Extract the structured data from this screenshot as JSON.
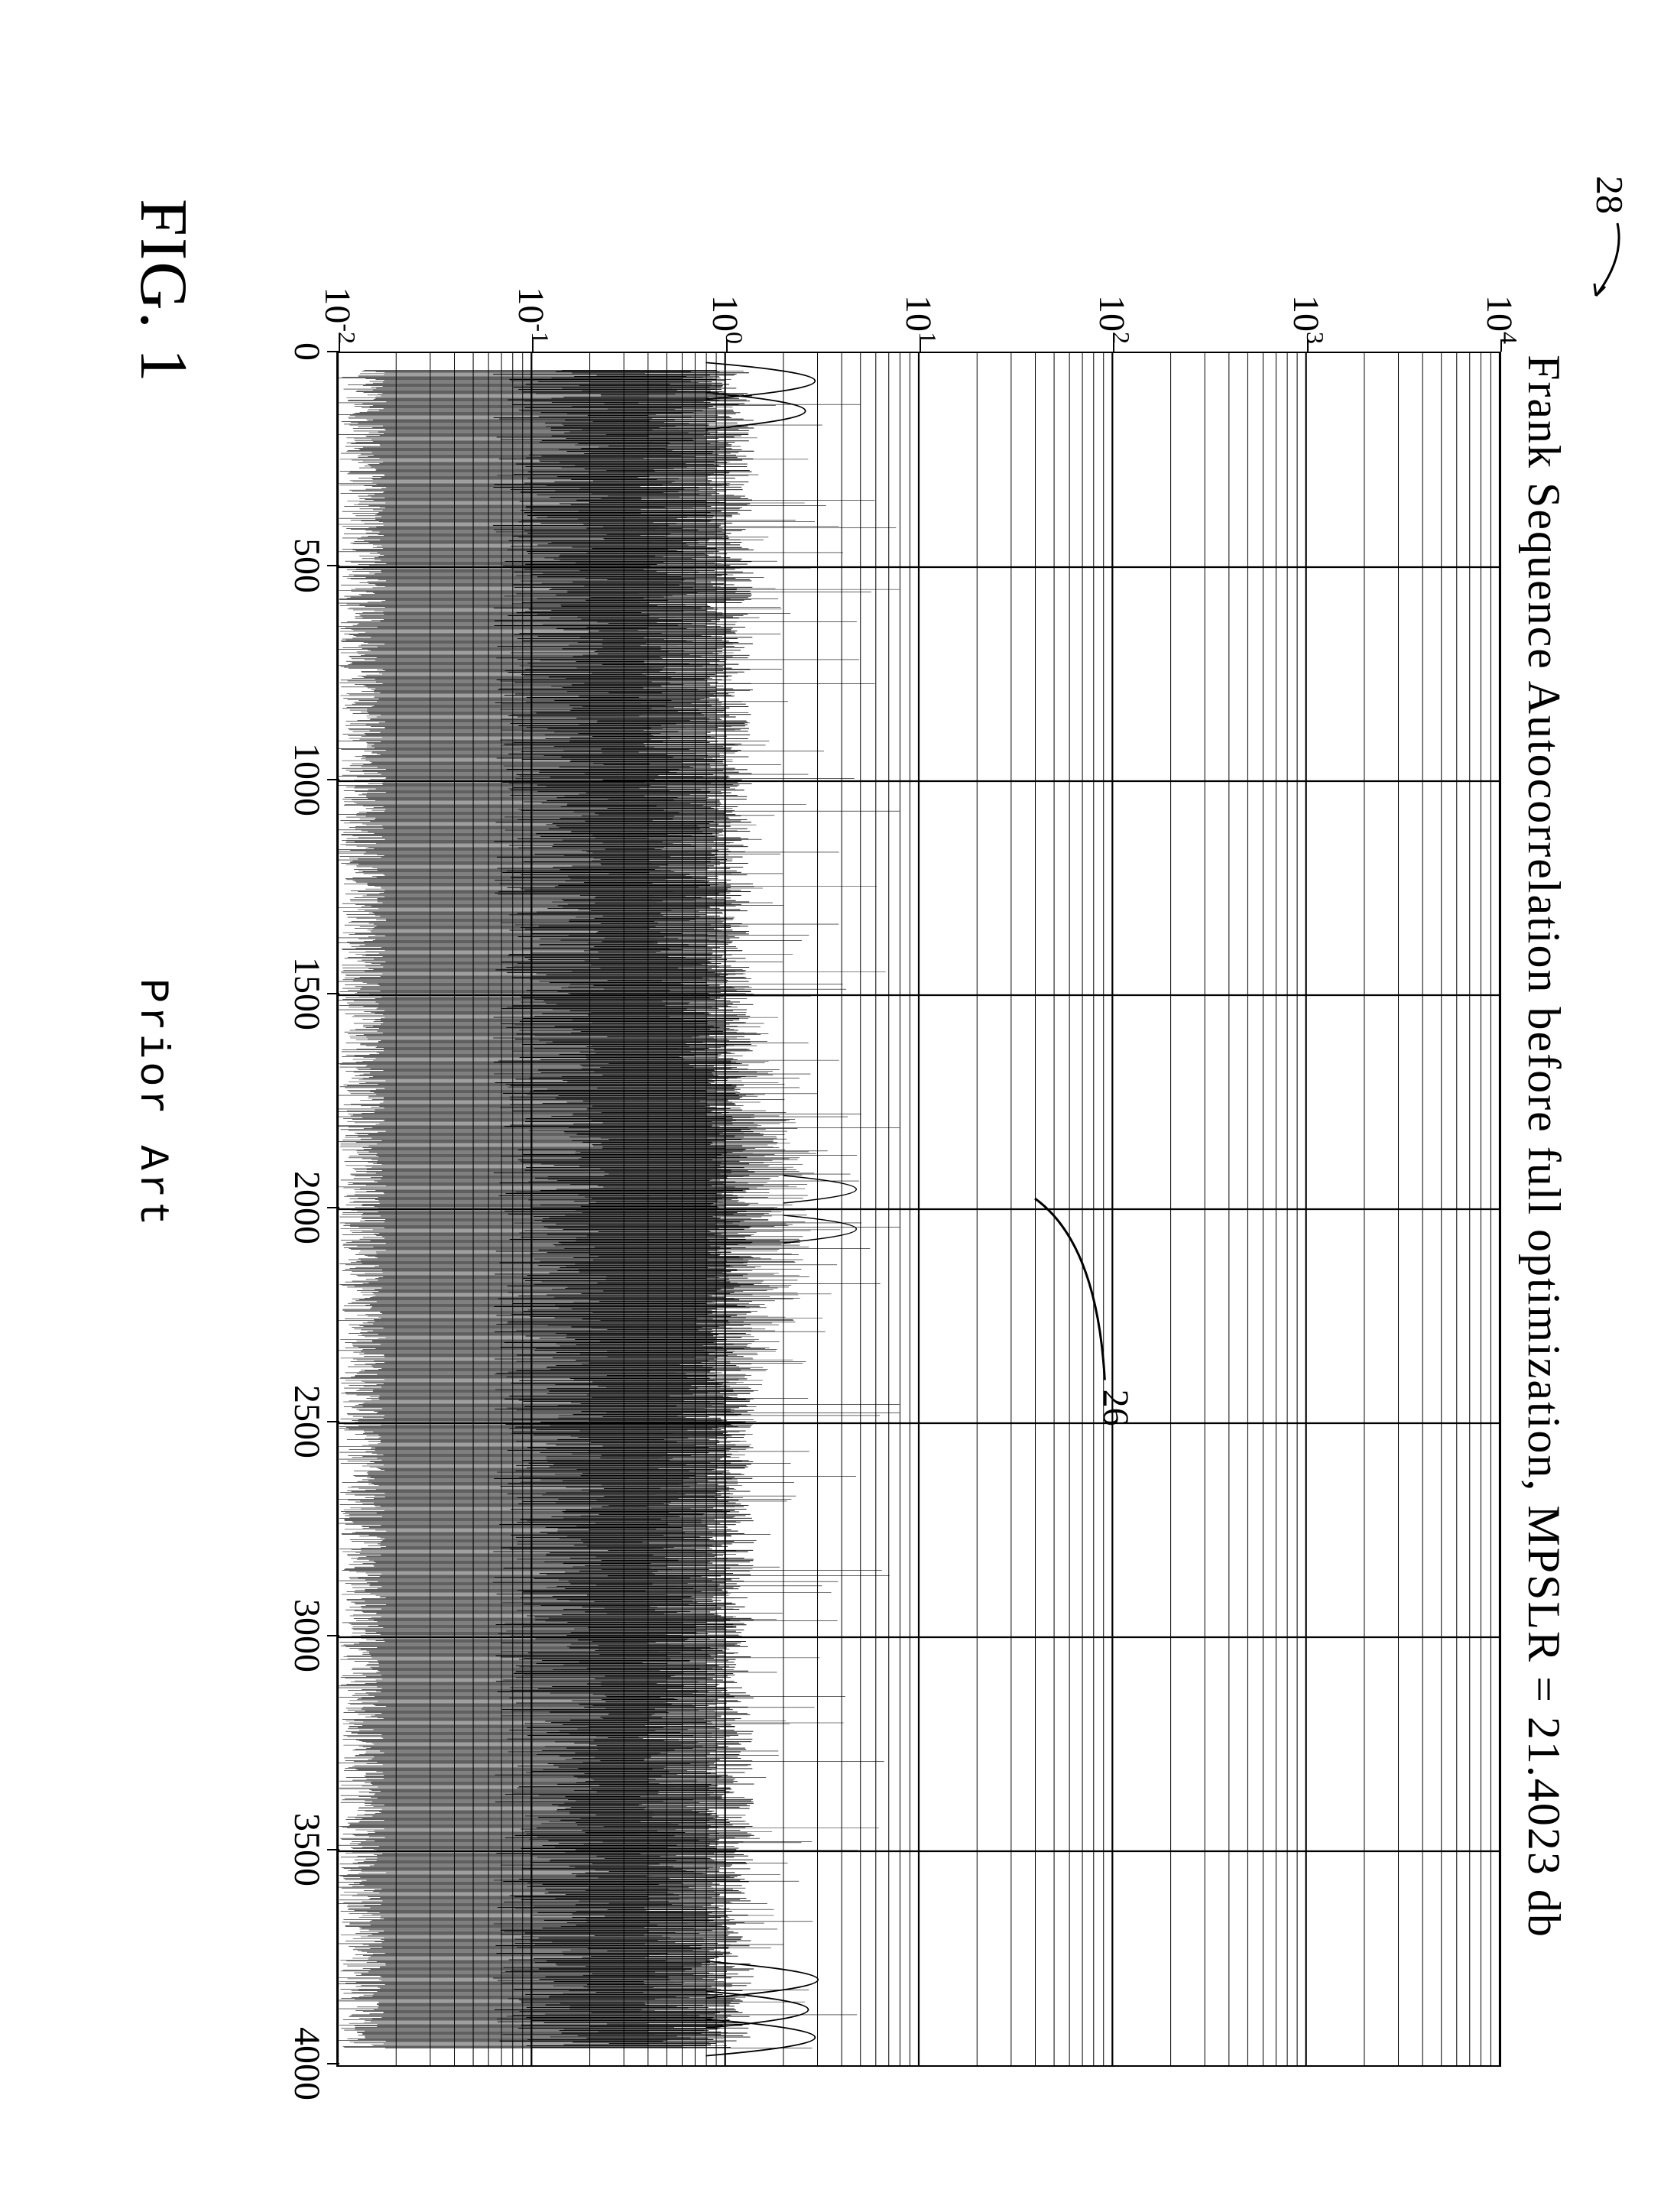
{
  "figure": {
    "ref_number": "28",
    "label": "FIG. 1",
    "prior_art": "Prior Art"
  },
  "chart": {
    "type": "line",
    "title": "Frank Sequence Autocorrelation before full optimization, MPSLR = 21.4023 db",
    "xlim": [
      0,
      4000
    ],
    "xticks": [
      0,
      500,
      1000,
      1500,
      2000,
      2500,
      3000,
      3500,
      4000
    ],
    "yscale": "log",
    "ylim_exp": [
      -2,
      4
    ],
    "ytick_exponents": [
      -2,
      -1,
      0,
      1,
      2,
      3,
      4
    ],
    "background_color": "#ffffff",
    "grid_color_major": "#000000",
    "grid_color_minor": "#000000",
    "line_color": "#000000",
    "line_width": 0.6,
    "title_fontsize": 60,
    "tick_fontsize": 48,
    "annotations": [
      {
        "id": "26",
        "x": 2460,
        "y_exp": 2.0,
        "leader_to_x": 1975,
        "leader_to_y_exp": 1.6
      }
    ],
    "peak": {
      "x": 2000,
      "y_exp": 3.3
    },
    "sidelobe_envelope_top_exp": 1.0,
    "sidelobe_envelope_bottom_exp": -2.0,
    "edge_bumps": [
      {
        "x": 65,
        "y_exp": 0.95
      },
      {
        "x": 135,
        "y_exp": 0.85
      },
      {
        "x": 3800,
        "y_exp": 0.98
      },
      {
        "x": 3870,
        "y_exp": 0.88
      },
      {
        "x": 3935,
        "y_exp": 0.95
      }
    ]
  }
}
